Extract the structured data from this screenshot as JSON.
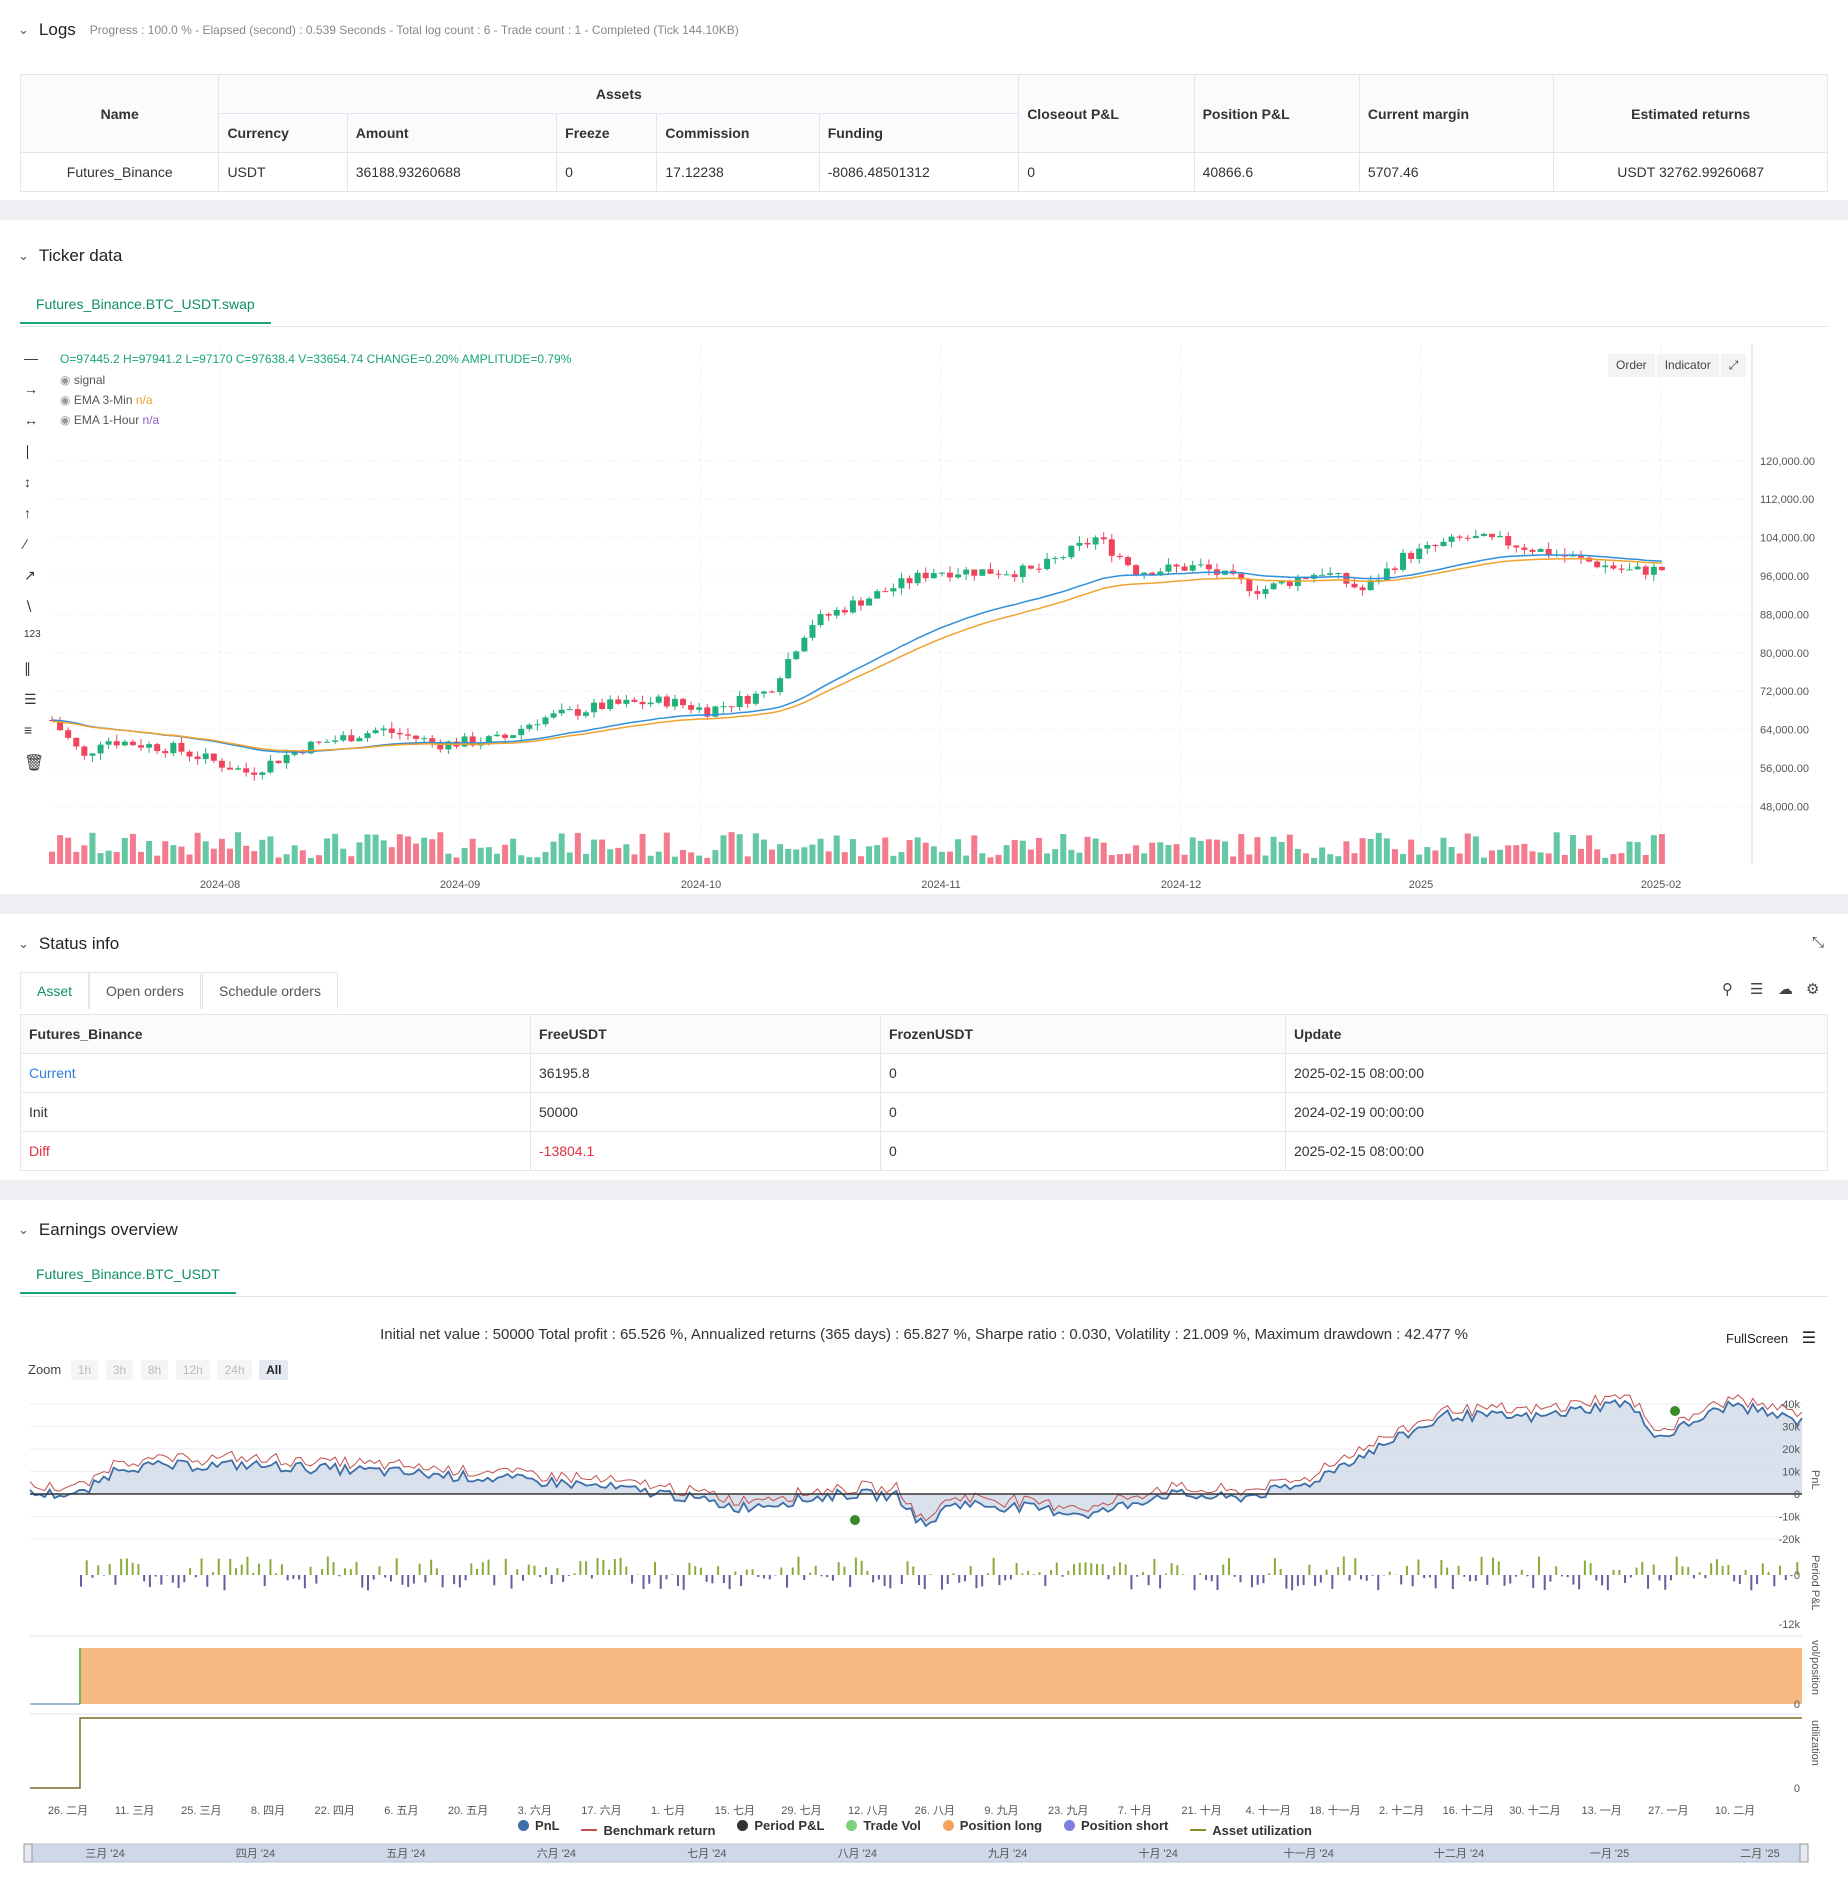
{
  "logs": {
    "title": "Logs",
    "subtitle": "Progress : 100.0 % - Elapsed (second) : 0.539  Seconds - Total log count : 6 - Trade count : 1 - Completed (Tick 144.10KB)",
    "headers": {
      "name": "Name",
      "assets": "Assets",
      "currency": "Currency",
      "amount": "Amount",
      "freeze": "Freeze",
      "commission": "Commission",
      "funding": "Funding",
      "closeout": "Closeout P&L",
      "position": "Position P&L",
      "margin": "Current margin",
      "returns": "Estimated returns"
    },
    "row": {
      "name": "Futures_Binance",
      "currency": "USDT",
      "amount": "36188.93260688",
      "freeze": "0",
      "commission": "17.12238",
      "funding": "-8086.48501312",
      "closeout": "0",
      "position": "40866.6",
      "margin": "5707.46",
      "returns": "USDT 32762.99260687"
    }
  },
  "ticker": {
    "title": "Ticker data",
    "tab": "Futures_Binance.BTC_USDT.swap",
    "ohlc": "O=97445.2 H=97941.2 L=97170 C=97638.4 V=33654.74 CHANGE=0.20% AMPLITUDE=0.79%",
    "legend": [
      {
        "name": "signal",
        "value": ""
      },
      {
        "name": "EMA 3-Min",
        "value": "n/a"
      },
      {
        "name": "EMA 1-Hour",
        "value": "n/a"
      }
    ],
    "buttons": {
      "order": "Order",
      "indicator": "Indicator"
    },
    "y_labels": [
      "120,000.00",
      "112,000.00",
      "104,000.00",
      "96,000.00",
      "88,000.00",
      "80,000.00",
      "72,000.00",
      "64,000.00",
      "56,000.00",
      "48,000.00"
    ],
    "x_labels": [
      "2024-08",
      "2024-09",
      "2024-10",
      "2024-11",
      "2024-12",
      "2025",
      "2025-02"
    ],
    "colors": {
      "up": "#22b07d",
      "down": "#f0435d",
      "ema_fast": "#2f8fd8",
      "ema_slow": "#f0a22e"
    }
  },
  "status": {
    "title": "Status info",
    "tabs": [
      "Asset",
      "Open orders",
      "Schedule orders"
    ],
    "headers": [
      "Futures_Binance",
      "FreeUSDT",
      "FrozenUSDT",
      "Update"
    ],
    "rows": [
      {
        "label": "Current",
        "free": "36195.8",
        "frozen": "0",
        "update": "2025-02-15 08:00:00"
      },
      {
        "label": "Init",
        "free": "50000",
        "frozen": "0",
        "update": "2024-02-19 00:00:00"
      },
      {
        "label": "Diff",
        "free": "-13804.1",
        "frozen": "0",
        "update": "2025-02-15 08:00:00"
      }
    ]
  },
  "earnings": {
    "title": "Earnings overview",
    "tab": "Futures_Binance.BTC_USDT",
    "summary": "Initial net value : 50000 Total profit : 65.526 %, Annualized returns (365 days) : 65.827 %, Sharpe ratio : 0.030, Volatility : 21.009 %, Maximum drawdown : 42.477 %",
    "fullscreen": "FullScreen",
    "zoom_label": "Zoom",
    "zoom_options": [
      "1h",
      "3h",
      "8h",
      "12h",
      "24h",
      "All"
    ],
    "pnl_y": [
      "40k",
      "30k",
      "20k",
      "10k",
      "0",
      "-10k",
      "-20k"
    ],
    "pnl_axis": "PnL",
    "period_axis": "Period P&L",
    "period_y": [
      "0",
      "-12k"
    ],
    "vol_axis": "vol/position",
    "vol_y": "0",
    "util_axis": "utilization",
    "util_y": "0",
    "x_labels": [
      "26. 二月",
      "11. 三月",
      "25. 三月",
      "8. 四月",
      "22. 四月",
      "6. 五月",
      "20. 五月",
      "3. 六月",
      "17. 六月",
      "1. 七月",
      "15. 七月",
      "29. 七月",
      "12. 八月",
      "26. 八月",
      "9. 九月",
      "23. 九月",
      "7. 十月",
      "21. 十月",
      "4. 十一月",
      "18. 十一月",
      "2. 十二月",
      "16. 十二月",
      "30. 十二月",
      "13. 一月",
      "27. 一月",
      "10. 二月"
    ],
    "nav_labels": [
      "三月 '24",
      "四月 '24",
      "五月 '24",
      "六月 '24",
      "七月 '24",
      "八月 '24",
      "九月 '24",
      "十月 '24",
      "十一月 '24",
      "十二月 '24",
      "一月 '25",
      "二月 '25"
    ],
    "legend": [
      {
        "name": "PnL",
        "color": "#3d6ea8",
        "kind": "dot"
      },
      {
        "name": "Benchmark return",
        "color": "#c0504d",
        "kind": "line"
      },
      {
        "name": "Period P&L",
        "color": "#333333",
        "kind": "dot"
      },
      {
        "name": "Trade Vol",
        "color": "#7fd07f",
        "kind": "dot"
      },
      {
        "name": "Position long",
        "color": "#f5a35c",
        "kind": "dot"
      },
      {
        "name": "Position short",
        "color": "#7f7fe0",
        "kind": "dot"
      },
      {
        "name": "Asset utilization",
        "color": "#8a8a2a",
        "kind": "line"
      }
    ]
  }
}
